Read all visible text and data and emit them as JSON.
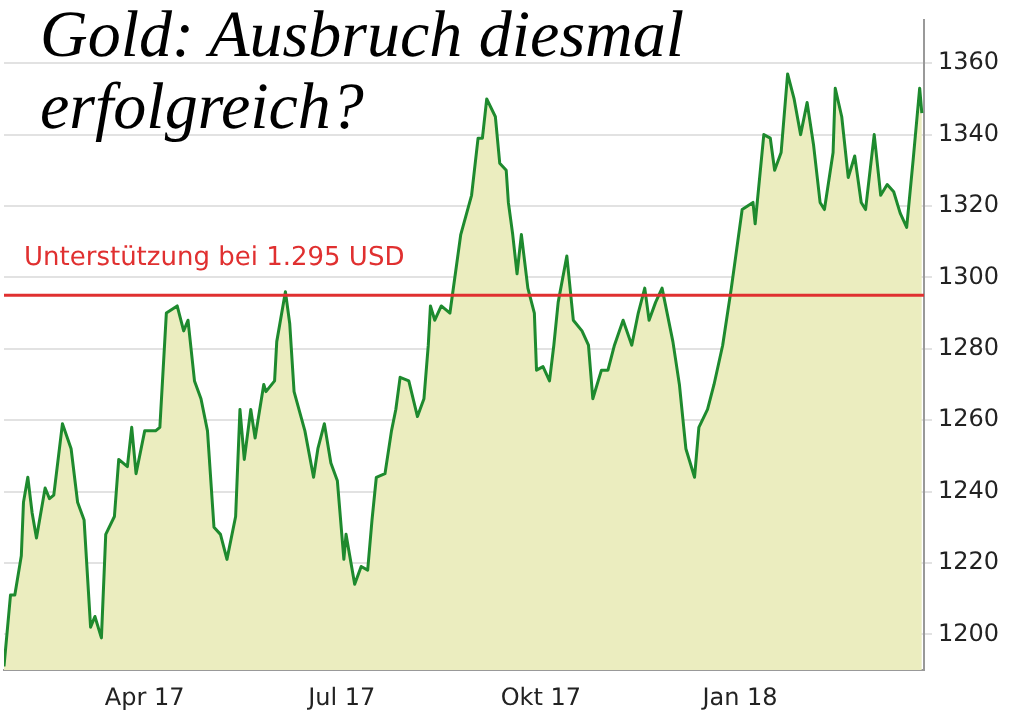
{
  "chart_data": {
    "type": "area",
    "title": "Gold: Ausbruch diesmal erfolgreich?",
    "x": [
      "2017-01-26",
      "2017-01-29",
      "2017-01-31",
      "2017-02-03",
      "2017-02-04",
      "2017-02-06",
      "2017-02-08",
      "2017-02-10",
      "2017-02-14",
      "2017-02-16",
      "2017-02-18",
      "2017-02-22",
      "2017-02-26",
      "2017-03-01",
      "2017-03-04",
      "2017-03-07",
      "2017-03-09",
      "2017-03-12",
      "2017-03-14",
      "2017-03-18",
      "2017-03-20",
      "2017-03-24",
      "2017-03-26",
      "2017-03-28",
      "2017-04-01",
      "2017-04-06",
      "2017-04-08",
      "2017-04-11",
      "2017-04-16",
      "2017-04-19",
      "2017-04-21",
      "2017-04-24",
      "2017-04-27",
      "2017-04-30",
      "2017-05-03",
      "2017-05-06",
      "2017-05-09",
      "2017-05-13",
      "2017-05-15",
      "2017-05-17",
      "2017-05-20",
      "2017-05-22",
      "2017-05-26",
      "2017-05-27",
      "2017-05-31",
      "2017-06-01",
      "2017-06-05",
      "2017-06-07",
      "2017-06-09",
      "2017-06-14",
      "2017-06-18",
      "2017-06-20",
      "2017-06-23",
      "2017-06-26",
      "2017-06-29",
      "2017-07-02",
      "2017-07-03",
      "2017-07-07",
      "2017-07-10",
      "2017-07-13",
      "2017-07-15",
      "2017-07-17",
      "2017-07-21",
      "2017-07-24",
      "2017-07-26",
      "2017-07-28",
      "2017-08-01",
      "2017-08-05",
      "2017-08-08",
      "2017-08-10",
      "2017-08-11",
      "2017-08-13",
      "2017-08-16",
      "2017-08-20",
      "2017-08-25",
      "2017-08-30",
      "2017-09-02",
      "2017-09-04",
      "2017-09-06",
      "2017-09-10",
      "2017-09-12",
      "2017-09-15",
      "2017-09-16",
      "2017-09-18",
      "2017-09-20",
      "2017-09-22",
      "2017-09-25",
      "2017-09-28",
      "2017-09-29",
      "2017-10-02",
      "2017-10-05",
      "2017-10-07",
      "2017-10-09",
      "2017-10-13",
      "2017-10-16",
      "2017-10-20",
      "2017-10-23",
      "2017-10-25",
      "2017-10-29",
      "2017-11-01",
      "2017-11-04",
      "2017-11-08",
      "2017-11-12",
      "2017-11-15",
      "2017-11-18",
      "2017-11-20",
      "2017-11-23",
      "2017-11-26",
      "2017-12-01",
      "2017-12-04",
      "2017-12-07",
      "2017-12-11",
      "2017-12-13",
      "2017-12-17",
      "2017-12-20",
      "2017-12-24",
      "2017-12-28",
      "2018-01-02",
      "2018-01-07",
      "2018-01-08",
      "2018-01-12",
      "2018-01-15",
      "2018-01-17",
      "2018-01-20",
      "2018-01-23",
      "2018-01-26",
      "2018-01-29",
      "2018-02-01",
      "2018-02-04",
      "2018-02-07",
      "2018-02-09",
      "2018-02-13",
      "2018-02-14",
      "2018-02-17",
      "2018-02-20",
      "2018-02-23",
      "2018-02-26",
      "2018-02-28",
      "2018-03-04",
      "2018-03-07",
      "2018-03-10",
      "2018-03-13",
      "2018-03-16",
      "2018-03-19",
      "2018-03-22",
      "2018-03-25",
      "2018-03-26"
    ],
    "series": [
      {
        "color": "#1e8a2e",
        "values": [
          1191,
          1211,
          1211,
          1222,
          1237,
          1244,
          1234,
          1227,
          1241,
          1238,
          1239,
          1259,
          1252,
          1237,
          1232,
          1202,
          1205,
          1199,
          1228,
          1233,
          1249,
          1247,
          1258,
          1245,
          1257,
          1257,
          1258,
          1290,
          1292,
          1285,
          1288,
          1271,
          1266,
          1257,
          1230,
          1228,
          1221,
          1233,
          1263,
          1249,
          1263,
          1255,
          1270,
          1268,
          1271,
          1282,
          1296,
          1287,
          1268,
          1257,
          1244,
          1252,
          1259,
          1248,
          1243,
          1221,
          1228,
          1214,
          1219,
          1218,
          1232,
          1244,
          1245,
          1257,
          1263,
          1272,
          1271,
          1261,
          1266,
          1281,
          1292,
          1288,
          1292,
          1290,
          1312,
          1323,
          1339,
          1339,
          1350,
          1345,
          1332,
          1330,
          1321,
          1312,
          1301,
          1312,
          1297,
          1290,
          1274,
          1275,
          1271,
          1281,
          1293,
          1306,
          1288,
          1285,
          1281,
          1266,
          1274,
          1274,
          1281,
          1288,
          1281,
          1290,
          1297,
          1288,
          1293,
          1297,
          1282,
          1270,
          1252,
          1244,
          1258,
          1263,
          1270,
          1281,
          1297,
          1319,
          1321,
          1315,
          1340,
          1339,
          1330,
          1335,
          1357,
          1350,
          1340,
          1349,
          1337,
          1321,
          1319,
          1335,
          1353,
          1345,
          1328,
          1334,
          1321,
          1319,
          1340,
          1323,
          1326,
          1324,
          1318,
          1314,
          1333,
          1353,
          1346
        ]
      }
    ],
    "xlim": [
      "2017-01-26",
      "2018-03-27"
    ],
    "xticks": [
      {
        "value": "2017-04-01",
        "label": "Apr 17"
      },
      {
        "value": "2017-07-01",
        "label": "Jul 17"
      },
      {
        "value": "2017-10-01",
        "label": "Okt 17"
      },
      {
        "value": "2018-01-01",
        "label": "Jan 18"
      }
    ],
    "ylim": [
      1190,
      1372
    ],
    "yticks": [
      1200,
      1220,
      1240,
      1260,
      1280,
      1300,
      1320,
      1340,
      1360
    ],
    "ref_lines": [
      {
        "axis": "y",
        "value": 1295,
        "label": "Unterstützung bei 1.295 USD",
        "color": "#e03030"
      }
    ],
    "grid": "y",
    "marker": "none",
    "line_style": "solid"
  }
}
